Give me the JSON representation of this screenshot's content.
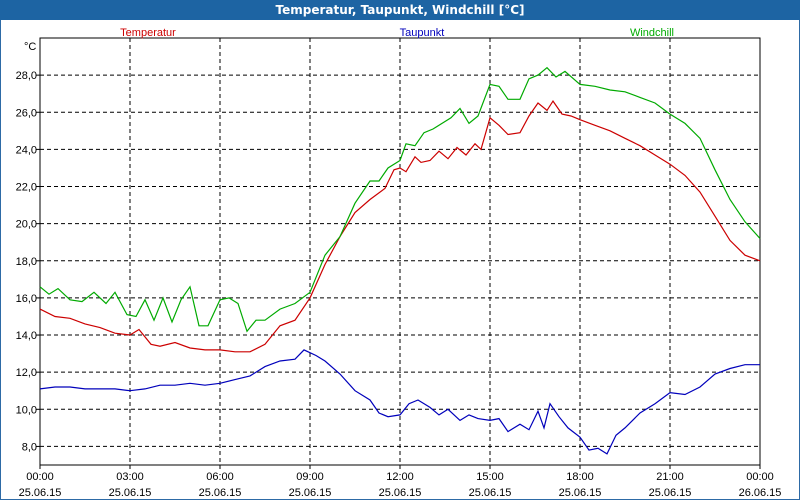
{
  "window": {
    "title": "Temperatur, Taupunkt, Windchill [°C]"
  },
  "colors": {
    "temperatur": "#cc0000",
    "taupunkt": "#0000bb",
    "windchill": "#00aa00",
    "titlebar": "#1d64a3"
  },
  "chart_data": {
    "type": "line",
    "unit_label": "°C",
    "ylim": [
      7,
      30
    ],
    "yticks": [
      8,
      10,
      12,
      14,
      16,
      18,
      20,
      22,
      24,
      26,
      28
    ],
    "ytick_labels": [
      "8,0",
      "10,0",
      "12,0",
      "14,0",
      "16,0",
      "18,0",
      "20,0",
      "22,0",
      "24,0",
      "26,0",
      "28,0"
    ],
    "xlim": [
      0,
      24
    ],
    "xticks": [
      0,
      3,
      6,
      9,
      12,
      15,
      18,
      21,
      24
    ],
    "xtick_labels": [
      [
        "00:00",
        "25.06.15"
      ],
      [
        "03:00",
        "25.06.15"
      ],
      [
        "06:00",
        "25.06.15"
      ],
      [
        "09:00",
        "25.06.15"
      ],
      [
        "12:00",
        "25.06.15"
      ],
      [
        "15:00",
        "25.06.15"
      ],
      [
        "18:00",
        "25.06.15"
      ],
      [
        "21:00",
        "25.06.15"
      ],
      [
        "00:00",
        "26.06.15"
      ]
    ],
    "grid": true,
    "legend": "top",
    "series": [
      {
        "name": "Temperatur",
        "color": "#cc0000",
        "points": [
          [
            0,
            15.4
          ],
          [
            0.5,
            15.0
          ],
          [
            1,
            14.9
          ],
          [
            1.5,
            14.6
          ],
          [
            2,
            14.4
          ],
          [
            2.5,
            14.1
          ],
          [
            3,
            14.0
          ],
          [
            3.3,
            14.3
          ],
          [
            3.7,
            13.5
          ],
          [
            4,
            13.4
          ],
          [
            4.5,
            13.6
          ],
          [
            5,
            13.3
          ],
          [
            5.5,
            13.2
          ],
          [
            6,
            13.2
          ],
          [
            6.5,
            13.1
          ],
          [
            7,
            13.1
          ],
          [
            7.5,
            13.5
          ],
          [
            8,
            14.5
          ],
          [
            8.5,
            14.8
          ],
          [
            9,
            16.0
          ],
          [
            9.5,
            17.8
          ],
          [
            10,
            19.3
          ],
          [
            10.5,
            20.6
          ],
          [
            11,
            21.3
          ],
          [
            11.5,
            21.9
          ],
          [
            11.8,
            22.9
          ],
          [
            12,
            23.0
          ],
          [
            12.2,
            22.8
          ],
          [
            12.5,
            23.6
          ],
          [
            12.7,
            23.3
          ],
          [
            13,
            23.4
          ],
          [
            13.3,
            23.9
          ],
          [
            13.6,
            23.5
          ],
          [
            13.9,
            24.1
          ],
          [
            14.2,
            23.7
          ],
          [
            14.5,
            24.3
          ],
          [
            14.7,
            24.0
          ],
          [
            15,
            25.7
          ],
          [
            15.3,
            25.3
          ],
          [
            15.6,
            24.8
          ],
          [
            16,
            24.9
          ],
          [
            16.3,
            25.8
          ],
          [
            16.6,
            26.5
          ],
          [
            16.9,
            26.1
          ],
          [
            17.1,
            26.6
          ],
          [
            17.4,
            25.9
          ],
          [
            17.7,
            25.8
          ],
          [
            18,
            25.6
          ],
          [
            18.5,
            25.3
          ],
          [
            19,
            25.0
          ],
          [
            19.5,
            24.6
          ],
          [
            20,
            24.2
          ],
          [
            20.5,
            23.7
          ],
          [
            21,
            23.2
          ],
          [
            21.5,
            22.6
          ],
          [
            22,
            21.7
          ],
          [
            22.5,
            20.4
          ],
          [
            23,
            19.1
          ],
          [
            23.5,
            18.3
          ],
          [
            24,
            18.0
          ]
        ]
      },
      {
        "name": "Taupunkt",
        "color": "#0000bb",
        "points": [
          [
            0,
            11.1
          ],
          [
            0.5,
            11.2
          ],
          [
            1,
            11.2
          ],
          [
            1.5,
            11.1
          ],
          [
            2,
            11.1
          ],
          [
            2.5,
            11.1
          ],
          [
            3,
            11.0
          ],
          [
            3.5,
            11.1
          ],
          [
            4,
            11.3
          ],
          [
            4.5,
            11.3
          ],
          [
            5,
            11.4
          ],
          [
            5.5,
            11.3
          ],
          [
            6,
            11.4
          ],
          [
            6.5,
            11.6
          ],
          [
            7,
            11.8
          ],
          [
            7.5,
            12.3
          ],
          [
            8,
            12.6
          ],
          [
            8.5,
            12.7
          ],
          [
            8.8,
            13.2
          ],
          [
            9.2,
            12.9
          ],
          [
            9.5,
            12.6
          ],
          [
            10,
            11.9
          ],
          [
            10.5,
            11.0
          ],
          [
            11,
            10.5
          ],
          [
            11.3,
            9.8
          ],
          [
            11.6,
            9.6
          ],
          [
            12,
            9.7
          ],
          [
            12.3,
            10.3
          ],
          [
            12.6,
            10.5
          ],
          [
            13,
            10.1
          ],
          [
            13.3,
            9.7
          ],
          [
            13.6,
            10.0
          ],
          [
            14,
            9.4
          ],
          [
            14.3,
            9.7
          ],
          [
            14.6,
            9.5
          ],
          [
            15,
            9.4
          ],
          [
            15.3,
            9.5
          ],
          [
            15.6,
            8.8
          ],
          [
            16,
            9.2
          ],
          [
            16.3,
            8.9
          ],
          [
            16.6,
            9.9
          ],
          [
            16.8,
            9.0
          ],
          [
            17,
            10.3
          ],
          [
            17.3,
            9.6
          ],
          [
            17.6,
            9.0
          ],
          [
            18,
            8.5
          ],
          [
            18.3,
            7.8
          ],
          [
            18.6,
            7.9
          ],
          [
            18.9,
            7.6
          ],
          [
            19.2,
            8.6
          ],
          [
            19.5,
            9.0
          ],
          [
            20,
            9.8
          ],
          [
            20.5,
            10.3
          ],
          [
            21,
            10.9
          ],
          [
            21.5,
            10.8
          ],
          [
            22,
            11.2
          ],
          [
            22.5,
            11.9
          ],
          [
            23,
            12.2
          ],
          [
            23.5,
            12.4
          ],
          [
            24,
            12.4
          ]
        ]
      },
      {
        "name": "Windchill",
        "color": "#00aa00",
        "points": [
          [
            0,
            16.6
          ],
          [
            0.3,
            16.2
          ],
          [
            0.6,
            16.5
          ],
          [
            1,
            15.9
          ],
          [
            1.4,
            15.8
          ],
          [
            1.8,
            16.3
          ],
          [
            2.2,
            15.7
          ],
          [
            2.5,
            16.3
          ],
          [
            2.9,
            15.1
          ],
          [
            3.2,
            15.0
          ],
          [
            3.5,
            15.9
          ],
          [
            3.8,
            14.8
          ],
          [
            4.1,
            16.0
          ],
          [
            4.4,
            14.7
          ],
          [
            4.7,
            15.9
          ],
          [
            5,
            16.6
          ],
          [
            5.3,
            14.5
          ],
          [
            5.6,
            14.5
          ],
          [
            6,
            15.9
          ],
          [
            6.3,
            16.0
          ],
          [
            6.6,
            15.7
          ],
          [
            6.9,
            14.2
          ],
          [
            7.2,
            14.8
          ],
          [
            7.5,
            14.8
          ],
          [
            8,
            15.4
          ],
          [
            8.5,
            15.7
          ],
          [
            9,
            16.3
          ],
          [
            9.5,
            18.3
          ],
          [
            10,
            19.3
          ],
          [
            10.5,
            21.1
          ],
          [
            11,
            22.3
          ],
          [
            11.3,
            22.3
          ],
          [
            11.6,
            23.0
          ],
          [
            12,
            23.4
          ],
          [
            12.2,
            24.3
          ],
          [
            12.5,
            24.2
          ],
          [
            12.8,
            24.9
          ],
          [
            13.1,
            25.1
          ],
          [
            13.4,
            25.4
          ],
          [
            13.7,
            25.7
          ],
          [
            14,
            26.2
          ],
          [
            14.3,
            25.4
          ],
          [
            14.6,
            25.8
          ],
          [
            15,
            27.5
          ],
          [
            15.3,
            27.4
          ],
          [
            15.6,
            26.7
          ],
          [
            16,
            26.7
          ],
          [
            16.3,
            27.8
          ],
          [
            16.6,
            28.0
          ],
          [
            16.9,
            28.4
          ],
          [
            17.2,
            27.9
          ],
          [
            17.5,
            28.2
          ],
          [
            18,
            27.5
          ],
          [
            18.5,
            27.4
          ],
          [
            19,
            27.2
          ],
          [
            19.5,
            27.1
          ],
          [
            20,
            26.8
          ],
          [
            20.5,
            26.5
          ],
          [
            21,
            25.9
          ],
          [
            21.5,
            25.4
          ],
          [
            22,
            24.6
          ],
          [
            22.5,
            22.9
          ],
          [
            23,
            21.3
          ],
          [
            23.5,
            20.1
          ],
          [
            24,
            19.2
          ]
        ]
      }
    ]
  }
}
